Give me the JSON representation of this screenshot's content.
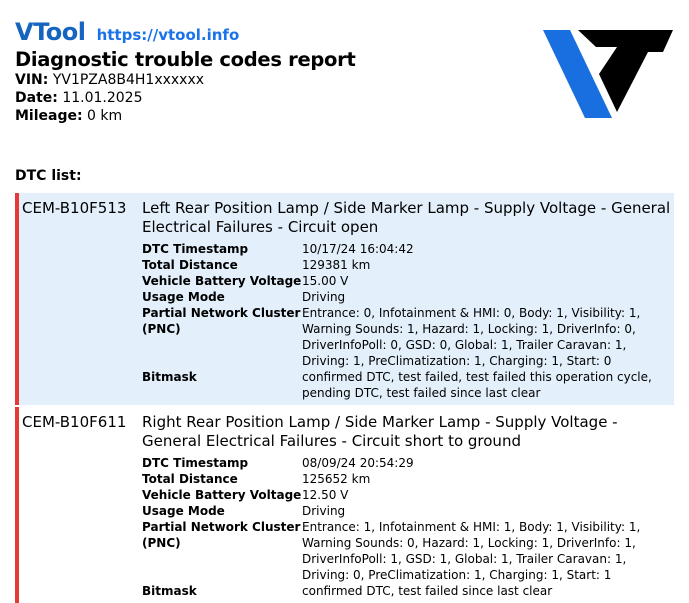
{
  "header": {
    "brand": "VTool",
    "url": "https://vtool.info",
    "title": "Diagnostic trouble codes report",
    "vin_label": "VIN:",
    "vin": "YV1PZA8B4H1xxxxxx",
    "date_label": "Date:",
    "date": "11.01.2025",
    "mileage_label": "Mileage:",
    "mileage": "0 km",
    "logo": "VT"
  },
  "colors": {
    "brand": "#1565c0",
    "error_bar": "#e53935",
    "highlight_bg": "#e3f0fb"
  },
  "dtc_list_label": "DTC list:",
  "dtcs": [
    {
      "code": "CEM-B10F513",
      "description": "Left Rear Position Lamp / Side Marker Lamp - Supply Voltage - General Electrical Failures - Circuit open",
      "props": [
        {
          "k": "DTC Timestamp",
          "v": "10/17/24 16:04:42"
        },
        {
          "k": "Total Distance",
          "v": "129381 km"
        },
        {
          "k": "Vehicle Battery Voltage",
          "v": "15.00 V"
        },
        {
          "k": "Usage Mode",
          "v": "Driving"
        },
        {
          "k": "Partial Network Cluster (PNC)",
          "v": "Entrance: 0, Infotainment & HMI: 0, Body: 1, Visibility: 1, Warning Sounds: 1, Hazard: 1, Locking: 1, DriverInfo: 0, DriverInfoPoll: 0, GSD: 0, Global: 1, Trailer Caravan: 1, Driving: 1, PreClimatization: 1, Charging: 1, Start: 0"
        },
        {
          "k": "Bitmask",
          "v": "confirmed DTC, test failed, test failed this operation cycle, pending DTC, test failed since last clear"
        }
      ]
    },
    {
      "code": "CEM-B10F611",
      "description": "Right Rear Position Lamp / Side Marker Lamp - Supply Voltage - General Electrical Failures - Circuit short to ground",
      "props": [
        {
          "k": "DTC Timestamp",
          "v": "08/09/24 20:54:29"
        },
        {
          "k": "Total Distance",
          "v": "125652 km"
        },
        {
          "k": "Vehicle Battery Voltage",
          "v": "12.50 V"
        },
        {
          "k": "Usage Mode",
          "v": "Driving"
        },
        {
          "k": "Partial Network Cluster (PNC)",
          "v": "Entrance: 1, Infotainment & HMI: 1, Body: 1, Visibility: 1, Warning Sounds: 0, Hazard: 1, Locking: 1, DriverInfo: 1, DriverInfoPoll: 1, GSD: 1, Global: 1, Trailer Caravan: 1, Driving: 0, PreClimatization: 1, Charging: 1, Start: 1"
        },
        {
          "k": "Bitmask",
          "v": "confirmed DTC, test failed since last clear"
        }
      ]
    }
  ]
}
